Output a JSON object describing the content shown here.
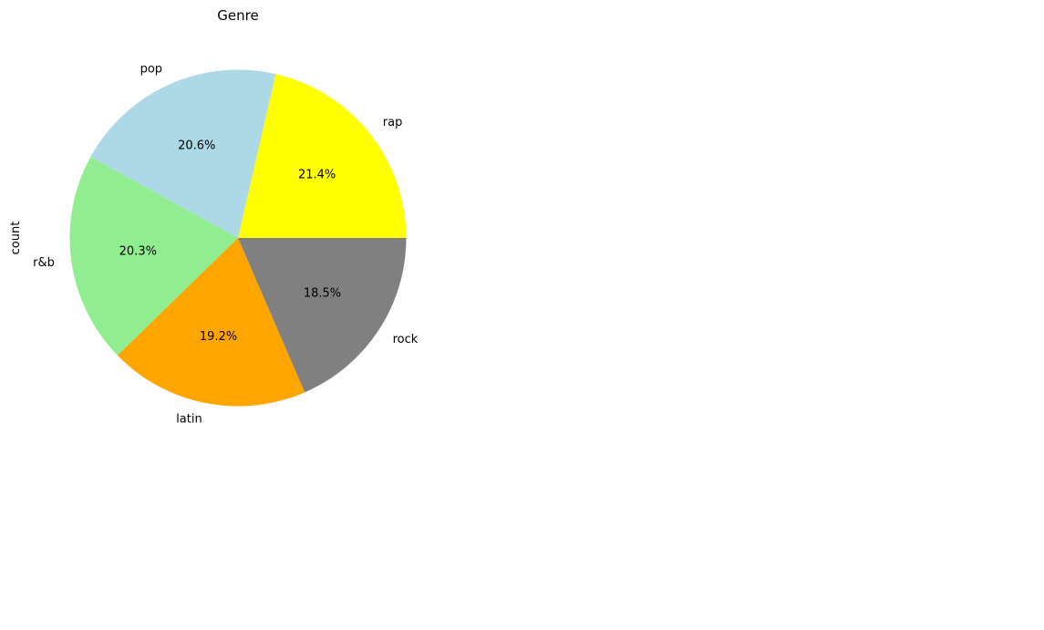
{
  "chart_data": {
    "type": "pie",
    "title": "Genre",
    "ylabel": "count",
    "xlabel": "",
    "start_angle_deg": 0,
    "direction": "counterclockwise",
    "slices": [
      {
        "label": "rap",
        "percent": 21.4,
        "pct_label": "21.4%",
        "color": "#ffff00"
      },
      {
        "label": "pop",
        "percent": 20.6,
        "pct_label": "20.6%",
        "color": "#add8e6"
      },
      {
        "label": "r&b",
        "percent": 20.3,
        "pct_label": "20.3%",
        "color": "#90ee90"
      },
      {
        "label": "latin",
        "percent": 19.2,
        "pct_label": "19.2%",
        "color": "#ffa500"
      },
      {
        "label": "rock",
        "percent": 18.5,
        "pct_label": "18.5%",
        "color": "#808080"
      }
    ]
  }
}
